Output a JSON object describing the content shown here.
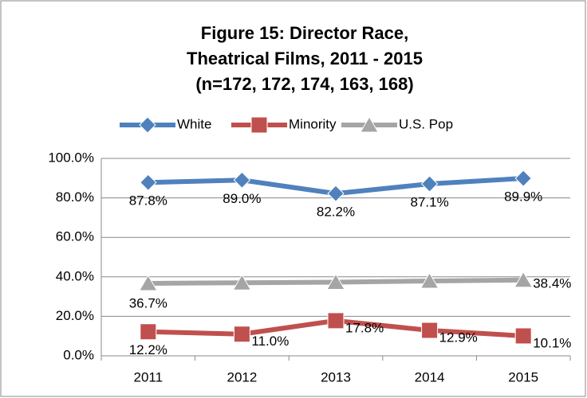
{
  "chart_data": {
    "type": "line",
    "title": [
      "Figure 15:  Director Race,",
      "Theatrical Films, 2011 - 2015",
      "(n=172, 172, 174, 163, 168)"
    ],
    "categories": [
      "2011",
      "2012",
      "2013",
      "2014",
      "2015"
    ],
    "series": [
      {
        "name": "White",
        "color": "#4f81bd",
        "marker": "diamond",
        "values": [
          87.8,
          89.0,
          82.2,
          87.1,
          89.9
        ],
        "value_labels": [
          "87.8%",
          "89.0%",
          "82.2%",
          "87.1%",
          "89.9%"
        ]
      },
      {
        "name": "Minority",
        "color": "#c0504d",
        "marker": "square",
        "values": [
          12.2,
          11.0,
          17.8,
          12.9,
          10.1
        ],
        "value_labels": [
          "12.2%",
          "11.0%",
          "17.8%",
          "12.9%",
          "10.1%"
        ]
      },
      {
        "name": "U.S. Pop",
        "color": "#a5a5a5",
        "marker": "triangle",
        "values": [
          36.7,
          37.0,
          37.3,
          37.9,
          38.4
        ],
        "value_labels": [
          "36.7%",
          null,
          null,
          null,
          "38.4%"
        ]
      }
    ],
    "ylim": [
      0,
      100
    ],
    "yticks": [
      {
        "value": 0,
        "label": "0.0%"
      },
      {
        "value": 20,
        "label": "20.0%"
      },
      {
        "value": 40,
        "label": "40.0%"
      },
      {
        "value": 60,
        "label": "60.0%"
      },
      {
        "value": 80,
        "label": "80.0%"
      },
      {
        "value": 100,
        "label": "100.0%"
      }
    ],
    "grid": true,
    "legend": "top"
  }
}
